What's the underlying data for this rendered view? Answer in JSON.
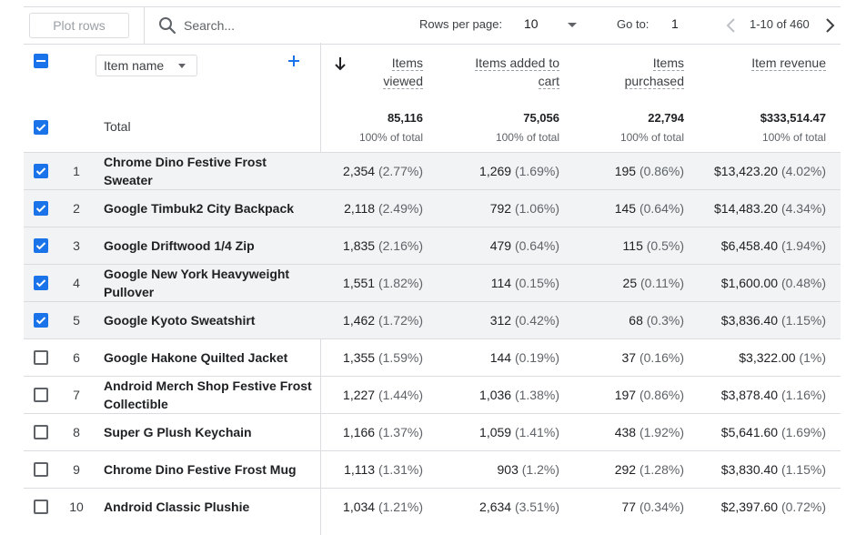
{
  "toolbar": {
    "plot_rows_label": "Plot rows",
    "search_placeholder": "Search...",
    "rows_per_page_label": "Rows per page:",
    "rows_per_page_value": "10",
    "goto_label": "Go to:",
    "goto_value": "1",
    "page_range": "1-10 of 460"
  },
  "header": {
    "dimension_label": "Item name",
    "metrics": [
      {
        "line1": "Items",
        "line2": "viewed"
      },
      {
        "line1": "Items added to",
        "line2": "cart"
      },
      {
        "line1": "Items",
        "line2": "purchased"
      },
      {
        "line1": "Item revenue",
        "line2": ""
      }
    ]
  },
  "total": {
    "label": "Total",
    "values": [
      "85,116",
      "75,056",
      "22,794",
      "$333,514.47"
    ],
    "percents": [
      "100% of total",
      "100% of total",
      "100% of total",
      "100% of total"
    ]
  },
  "rows": [
    {
      "n": "1",
      "name": "Chrome Dino Festive Frost Sweater",
      "checked": true,
      "v": [
        "2,354",
        "(2.77%)",
        "1,269",
        "(1.69%)",
        "195",
        "(0.86%)",
        "$13,423.20",
        "(4.02%)"
      ]
    },
    {
      "n": "2",
      "name": "Google Timbuk2 City Backpack",
      "checked": true,
      "v": [
        "2,118",
        "(2.49%)",
        "792",
        "(1.06%)",
        "145",
        "(0.64%)",
        "$14,483.20",
        "(4.34%)"
      ]
    },
    {
      "n": "3",
      "name": "Google Driftwood 1/4 Zip",
      "checked": true,
      "v": [
        "1,835",
        "(2.16%)",
        "479",
        "(0.64%)",
        "115",
        "(0.5%)",
        "$6,458.40",
        "(1.94%)"
      ]
    },
    {
      "n": "4",
      "name": "Google New York Heavyweight Pullover",
      "checked": true,
      "v": [
        "1,551",
        "(1.82%)",
        "114",
        "(0.15%)",
        "25",
        "(0.11%)",
        "$1,600.00",
        "(0.48%)"
      ]
    },
    {
      "n": "5",
      "name": "Google Kyoto Sweatshirt",
      "checked": true,
      "v": [
        "1,462",
        "(1.72%)",
        "312",
        "(0.42%)",
        "68",
        "(0.3%)",
        "$3,836.40",
        "(1.15%)"
      ]
    },
    {
      "n": "6",
      "name": "Google Hakone Quilted Jacket",
      "checked": false,
      "v": [
        "1,355",
        "(1.59%)",
        "144",
        "(0.19%)",
        "37",
        "(0.16%)",
        "$3,322.00",
        "(1%)"
      ]
    },
    {
      "n": "7",
      "name": "Android Merch Shop Festive Frost Collectible",
      "checked": false,
      "v": [
        "1,227",
        "(1.44%)",
        "1,036",
        "(1.38%)",
        "197",
        "(0.86%)",
        "$3,878.40",
        "(1.16%)"
      ]
    },
    {
      "n": "8",
      "name": "Super G Plush Keychain",
      "checked": false,
      "v": [
        "1,166",
        "(1.37%)",
        "1,059",
        "(1.41%)",
        "438",
        "(1.92%)",
        "$5,641.60",
        "(1.69%)"
      ]
    },
    {
      "n": "9",
      "name": "Chrome Dino Festive Frost Mug",
      "checked": false,
      "v": [
        "1,113",
        "(1.31%)",
        "903",
        "(1.2%)",
        "292",
        "(1.28%)",
        "$3,830.40",
        "(1.15%)"
      ]
    },
    {
      "n": "10",
      "name": "Android Classic Plushie",
      "checked": false,
      "v": [
        "1,034",
        "(1.21%)",
        "2,634",
        "(3.51%)",
        "77",
        "(0.34%)",
        "$2,397.60",
        "(0.72%)"
      ]
    }
  ],
  "colors": {
    "accent": "#1a73e8",
    "selected_row_bg": "#f1f3f4"
  }
}
